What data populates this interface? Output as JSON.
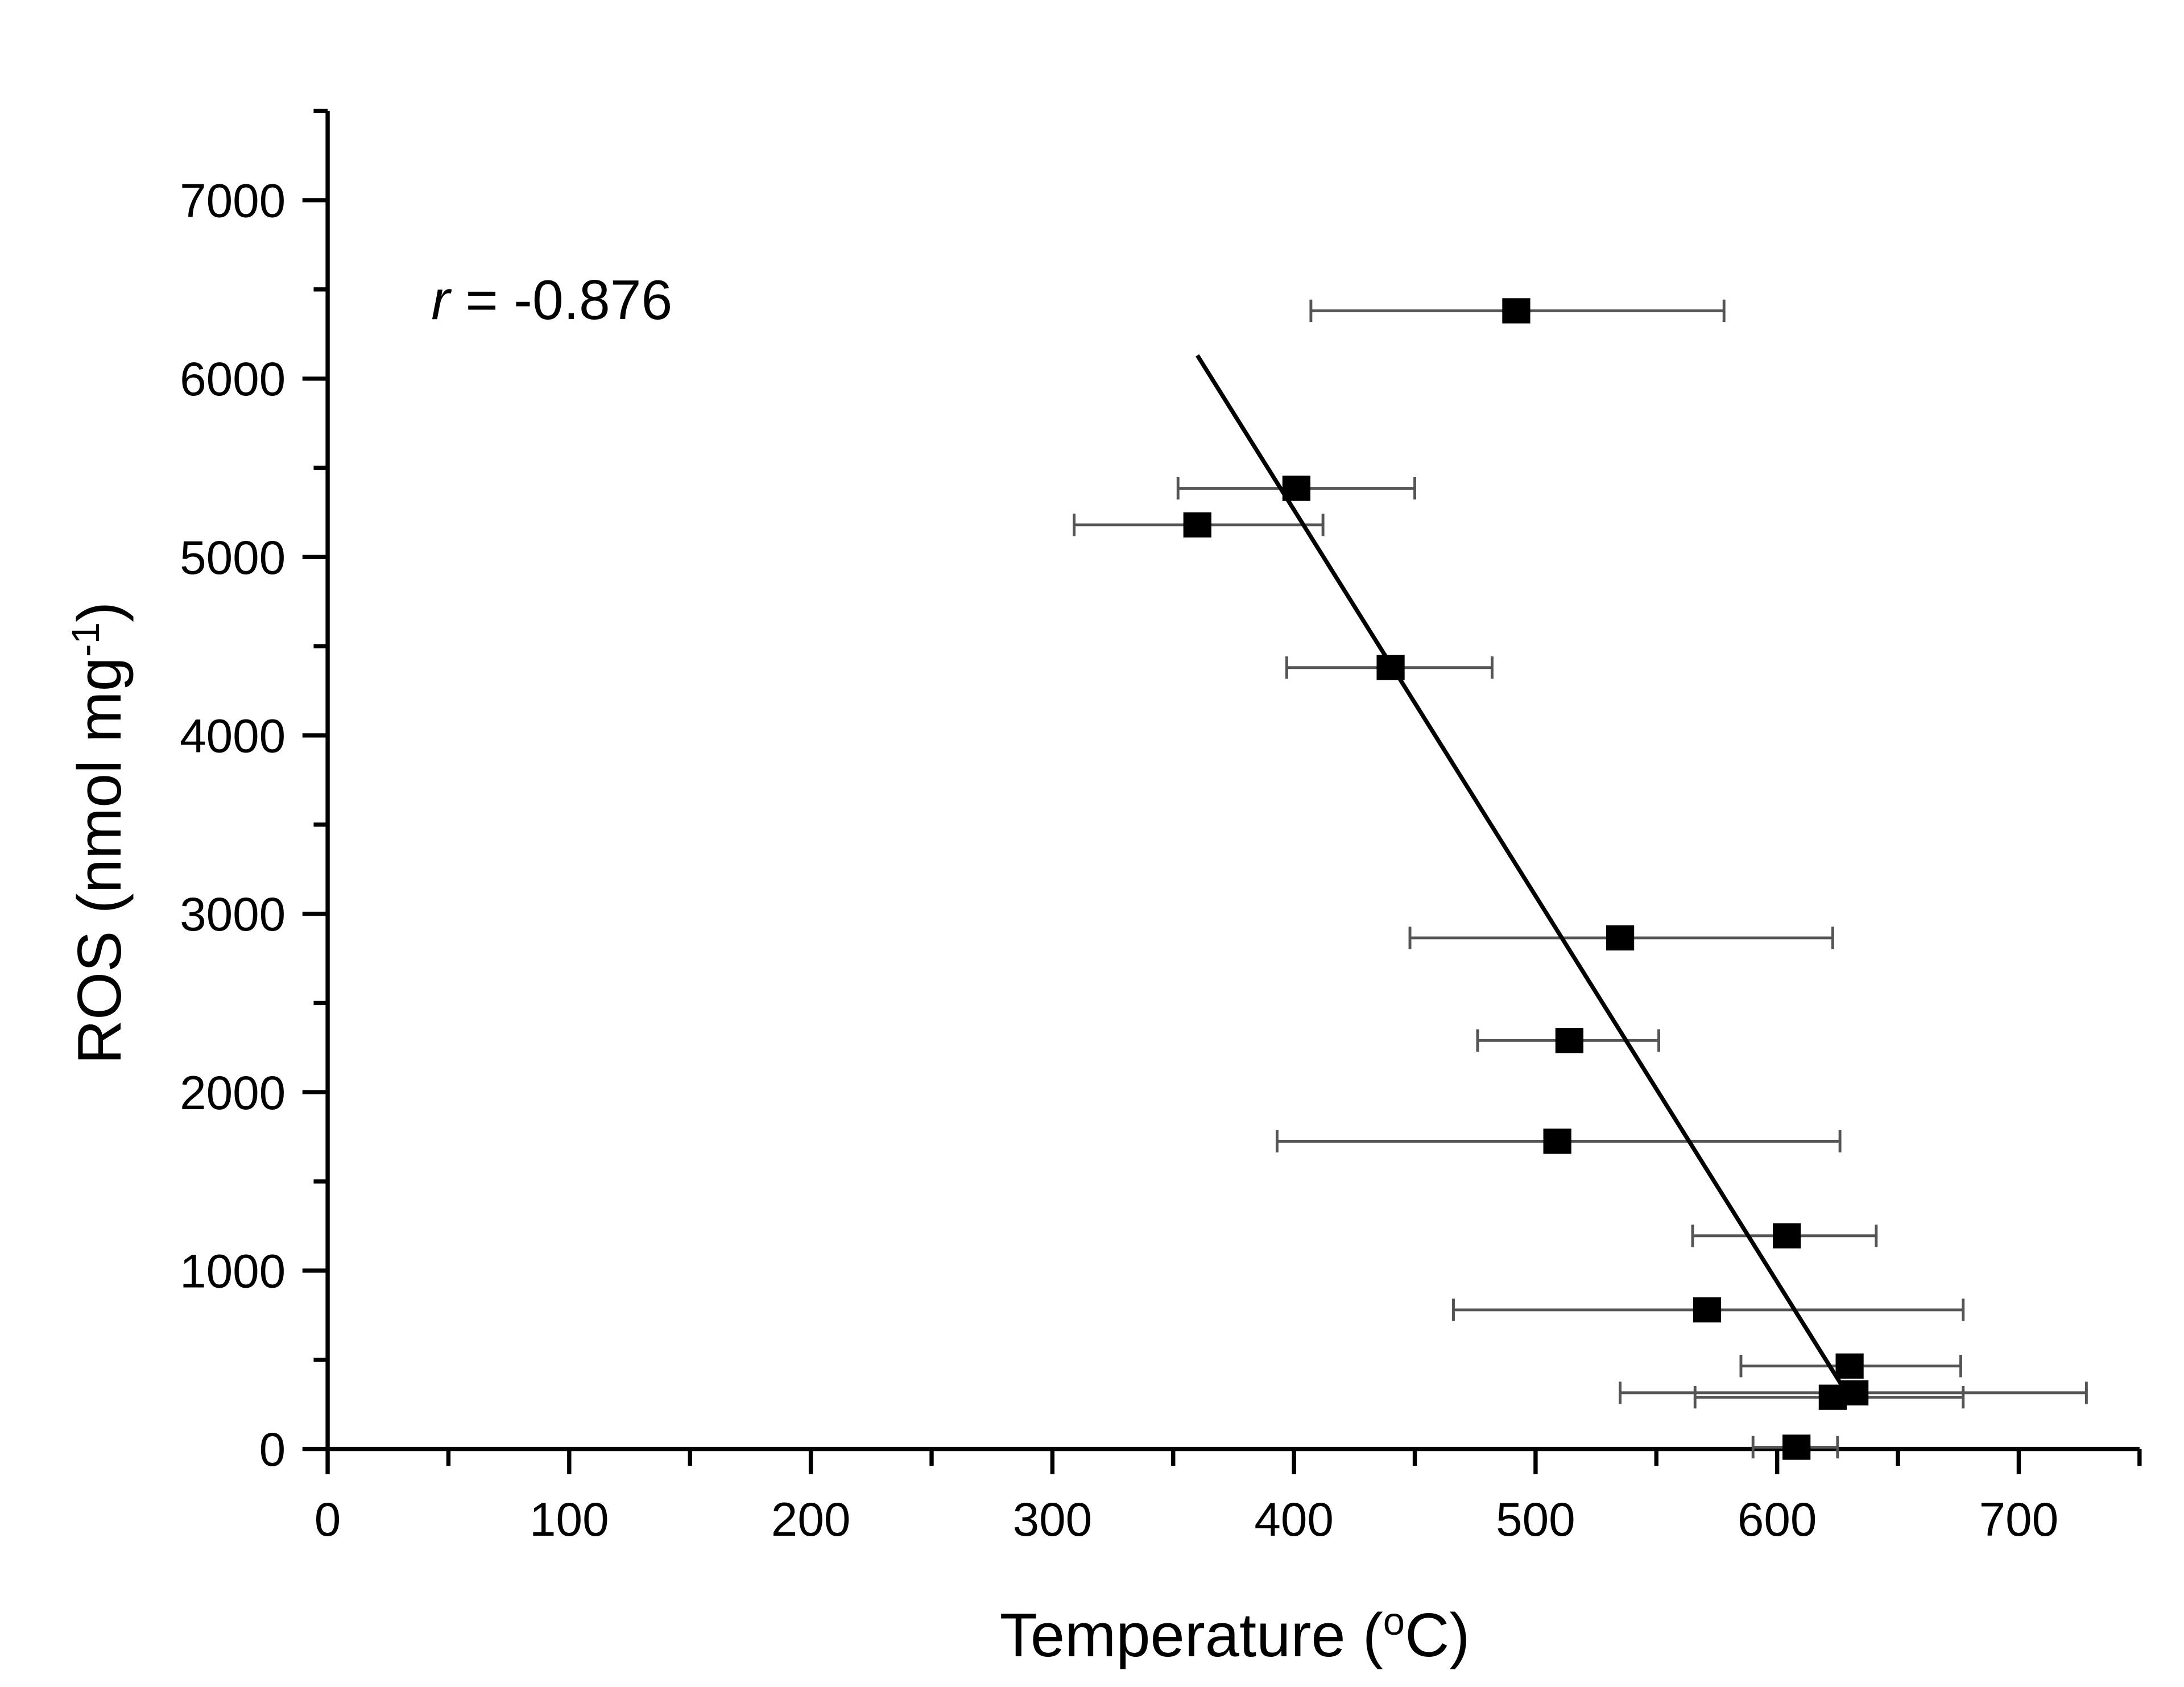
{
  "chart_data": {
    "type": "scatter",
    "title": "",
    "xlabel": "Temperature (",
    "xlabel_sup": "o",
    "xlabel_end": "C)",
    "ylabel": "ROS (nmol mg",
    "ylabel_sup": "-1",
    "ylabel_end": ")",
    "xlim": [
      0,
      750
    ],
    "ylim": [
      0,
      7500
    ],
    "xticks": [
      "0",
      "100",
      "200",
      "300",
      "400",
      "500",
      "600",
      "700"
    ],
    "yticks": [
      "0",
      "1000",
      "2000",
      "3000",
      "4000",
      "5000",
      "6000",
      "7000"
    ],
    "grid": false,
    "annotation": {
      "italic": "r",
      "text": " = -0.876"
    },
    "marker_color": "#000000",
    "errorbar_color": "#555555",
    "points": [
      {
        "x": 492,
        "y": 6380,
        "xerr_low": 407,
        "xerr_high": 578
      },
      {
        "x": 401,
        "y": 5385,
        "xerr_low": 352,
        "xerr_high": 450
      },
      {
        "x": 360,
        "y": 5180,
        "xerr_low": 309,
        "xerr_high": 412
      },
      {
        "x": 440,
        "y": 4380,
        "xerr_low": 397,
        "xerr_high": 482
      },
      {
        "x": 535,
        "y": 2865,
        "xerr_low": 448,
        "xerr_high": 623
      },
      {
        "x": 514,
        "y": 2290,
        "xerr_low": 476,
        "xerr_high": 551
      },
      {
        "x": 509,
        "y": 1725,
        "xerr_low": 393,
        "xerr_high": 626
      },
      {
        "x": 604,
        "y": 1195,
        "xerr_low": 565,
        "xerr_high": 641
      },
      {
        "x": 571,
        "y": 780,
        "xerr_low": 466,
        "xerr_high": 677
      },
      {
        "x": 630,
        "y": 465,
        "xerr_low": 585,
        "xerr_high": 676
      },
      {
        "x": 632,
        "y": 315,
        "xerr_low": 535,
        "xerr_high": 728
      },
      {
        "x": 623,
        "y": 290,
        "xerr_low": 566,
        "xerr_high": 677
      },
      {
        "x": 608,
        "y": 10,
        "xerr_low": 590,
        "xerr_high": 625
      }
    ],
    "fit_line": {
      "x": [
        360,
        628
      ],
      "y": [
        6130,
        330
      ]
    }
  }
}
